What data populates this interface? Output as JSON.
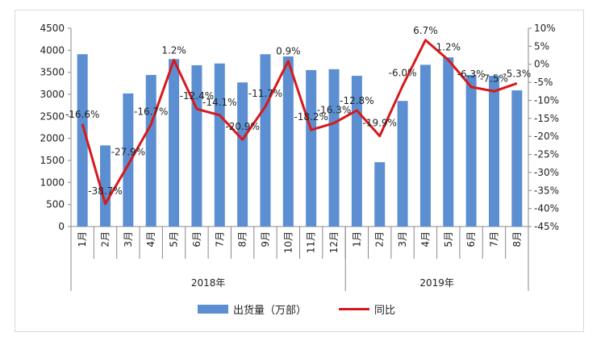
{
  "chart_data": {
    "type": "bar+line",
    "categories": [
      "1月",
      "2月",
      "3月",
      "4月",
      "5月",
      "6月",
      "7月",
      "8月",
      "9月",
      "10月",
      "11月",
      "12月",
      "1月",
      "2月",
      "3月",
      "4月",
      "5月",
      "6月",
      "7月",
      "8月"
    ],
    "groups": [
      {
        "label": "2018年",
        "count": 12
      },
      {
        "label": "2019年",
        "count": 8
      }
    ],
    "series": [
      {
        "name": "出货量（万部）",
        "type": "bar",
        "axis": "left",
        "color": "#5b8fd1",
        "values": [
          3910,
          1840,
          3020,
          3440,
          3800,
          3660,
          3700,
          3270,
          3910,
          3860,
          3550,
          3570,
          3420,
          1460,
          2850,
          3670,
          3840,
          3440,
          3420,
          3090
        ]
      },
      {
        "name": "同比",
        "type": "line",
        "axis": "right",
        "color": "#d7191c",
        "values": [
          -16.6,
          -38.7,
          -27.9,
          -16.7,
          1.2,
          -12.4,
          -14.1,
          -20.9,
          -11.7,
          0.9,
          -18.2,
          -16.3,
          -12.8,
          -19.9,
          -6.0,
          6.7,
          1.2,
          -6.3,
          -7.5,
          -5.3
        ],
        "labels": [
          "-16.6%",
          "-38.7%",
          "-27.9%",
          "-16.7%",
          "1.2%",
          "-12.4%",
          "-14.1%",
          "-20.9%",
          "-11.7%",
          "0.9%",
          "-18.2%",
          "-16.3%",
          "-12.8%",
          "-19.9%",
          "-6.0%",
          "6.7%",
          "1.2%",
          "-6.3%",
          "-7.5%",
          "-5.3%"
        ]
      }
    ],
    "y_left": {
      "min": 0,
      "max": 4500,
      "step": 500,
      "ticks": [
        "0",
        "500",
        "1000",
        "1500",
        "2000",
        "2500",
        "3000",
        "3500",
        "4000",
        "4500"
      ]
    },
    "y_right": {
      "min": -45,
      "max": 10,
      "step": 5,
      "ticks": [
        "-45%",
        "-40%",
        "-35%",
        "-30%",
        "-25%",
        "-20%",
        "-15%",
        "-10%",
        "-5%",
        "0%",
        "5%",
        "10%"
      ]
    },
    "legend_position": "bottom",
    "grid": false
  }
}
